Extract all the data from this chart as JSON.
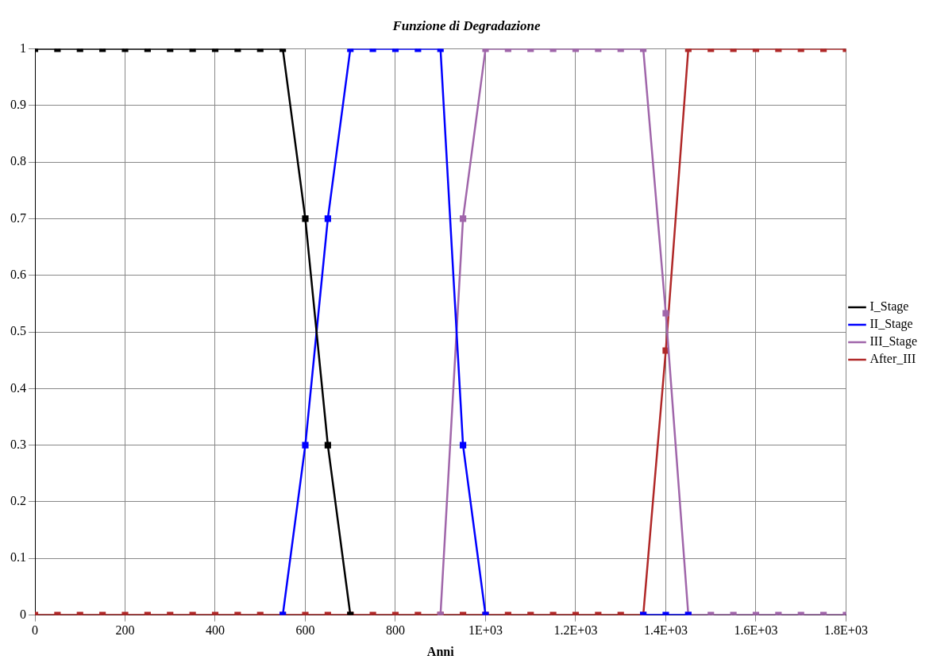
{
  "chart_data": {
    "type": "line",
    "title": "Funzione di Degradazione",
    "xlabel": "Anni",
    "x": [
      0,
      50,
      100,
      150,
      200,
      250,
      300,
      350,
      400,
      450,
      500,
      550,
      600,
      650,
      700,
      750,
      800,
      850,
      900,
      950,
      1000,
      1050,
      1100,
      1150,
      1200,
      1250,
      1300,
      1350,
      1400,
      1450,
      1500,
      1550,
      1600,
      1650,
      1700,
      1750,
      1800
    ],
    "series": [
      {
        "name": "I_Stage",
        "color": "#000000",
        "values": [
          1,
          1,
          1,
          1,
          1,
          1,
          1,
          1,
          1,
          1,
          1,
          1,
          0.7,
          0.3,
          0,
          null,
          null,
          null,
          null,
          null,
          null,
          null,
          null,
          null,
          null,
          null,
          null,
          null,
          null,
          null,
          null,
          null,
          null,
          null,
          null,
          null,
          null
        ]
      },
      {
        "name": "II_Stage",
        "color": "#0000ff",
        "values": [
          null,
          null,
          null,
          null,
          null,
          null,
          null,
          null,
          null,
          null,
          null,
          0,
          0.3,
          0.7,
          1,
          1,
          1,
          1,
          1,
          0.3,
          0,
          null,
          null,
          null,
          null,
          null,
          null,
          0,
          0,
          0,
          null,
          null,
          null,
          null,
          null,
          null,
          null
        ]
      },
      {
        "name": "III_Stage",
        "color": "#a066aa",
        "values": [
          null,
          null,
          null,
          null,
          null,
          null,
          null,
          null,
          null,
          null,
          null,
          null,
          null,
          null,
          null,
          null,
          null,
          null,
          0,
          0.7,
          1,
          1,
          1,
          1,
          1,
          1,
          1,
          1,
          0.533,
          0,
          0,
          0,
          0,
          0,
          0,
          0,
          0
        ]
      },
      {
        "name": "After_III",
        "color": "#b02828",
        "values": [
          0,
          0,
          0,
          0,
          0,
          0,
          0,
          0,
          0,
          0,
          0,
          0,
          0,
          0,
          0,
          0,
          0,
          0,
          0,
          0,
          0,
          0,
          0,
          0,
          0,
          0,
          0,
          0,
          0.467,
          1,
          1,
          1,
          1,
          1,
          1,
          1,
          1
        ]
      }
    ],
    "xlim": [
      0,
      1800
    ],
    "xticks": [
      0,
      200,
      400,
      600,
      800,
      {
        "value": 1000,
        "label": "1E+03"
      },
      {
        "value": 1200,
        "label": "1.2E+03"
      },
      {
        "value": 1400,
        "label": "1.4E+03"
      },
      {
        "value": 1600,
        "label": "1.6E+03"
      },
      {
        "value": 1800,
        "label": "1.8E+03"
      }
    ],
    "ylim": [
      0,
      1
    ],
    "yticks": [
      0,
      0.1,
      0.2,
      0.3,
      0.4,
      0.5,
      0.6,
      0.7,
      0.8,
      0.9,
      1
    ],
    "grid": true,
    "legend": "right",
    "marker": "square",
    "line_style": "solid"
  }
}
